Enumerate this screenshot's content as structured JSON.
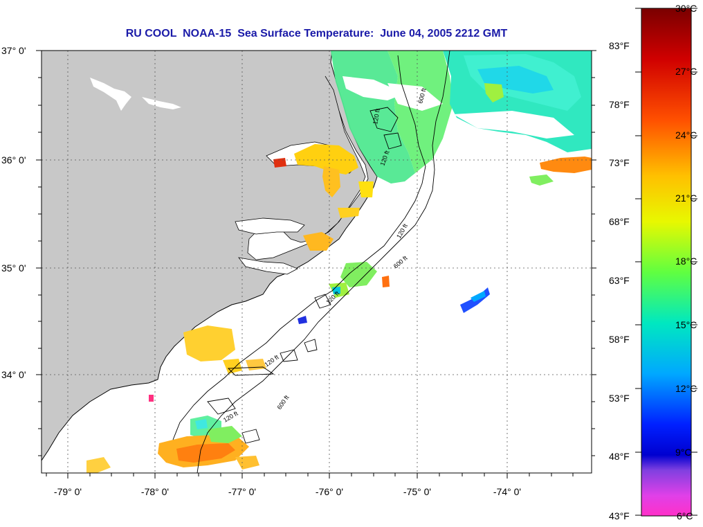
{
  "title": "RU COOL  NOAA-15  Sea Surface Temperature:  June 04, 2005 2212 GMT",
  "map": {
    "lat_labels": [
      "37° 0'",
      "36° 0'",
      "35° 0'",
      "34° 0'"
    ],
    "lon_labels": [
      "-79° 0'",
      "-78° 0'",
      "-77° 0'",
      "-76° 0'",
      "-75° 0'",
      "-74° 0'"
    ],
    "contour_labels": [
      "120 ft",
      "600 ft",
      "120 ft",
      "120 ft",
      "600 ft",
      "120 ft",
      "120 ft",
      "600 ft",
      "120 ft"
    ],
    "colors": {
      "land": "#c8c8c8",
      "ocean": "#ffffff",
      "grid": "#555555"
    }
  },
  "colorbar": {
    "celsius_labels": [
      "30°C",
      "27°C",
      "24°C",
      "21°C",
      "18°C",
      "15°C",
      "12°C",
      "9°C",
      "6°C"
    ],
    "fahrenheit_labels": [
      "83°F",
      "78°F",
      "73°F",
      "68°F",
      "63°F",
      "58°F",
      "53°F",
      "48°F",
      "43°F"
    ],
    "gradient": [
      "#7a0000",
      "#d00000",
      "#ff3000",
      "#ff8c00",
      "#ffd000",
      "#e0f000",
      "#90ff20",
      "#30ff60",
      "#00f0c0",
      "#00d0ff",
      "#0070ff",
      "#0000ff",
      "#8030e0",
      "#ff20e0",
      "#ff40c0"
    ]
  }
}
